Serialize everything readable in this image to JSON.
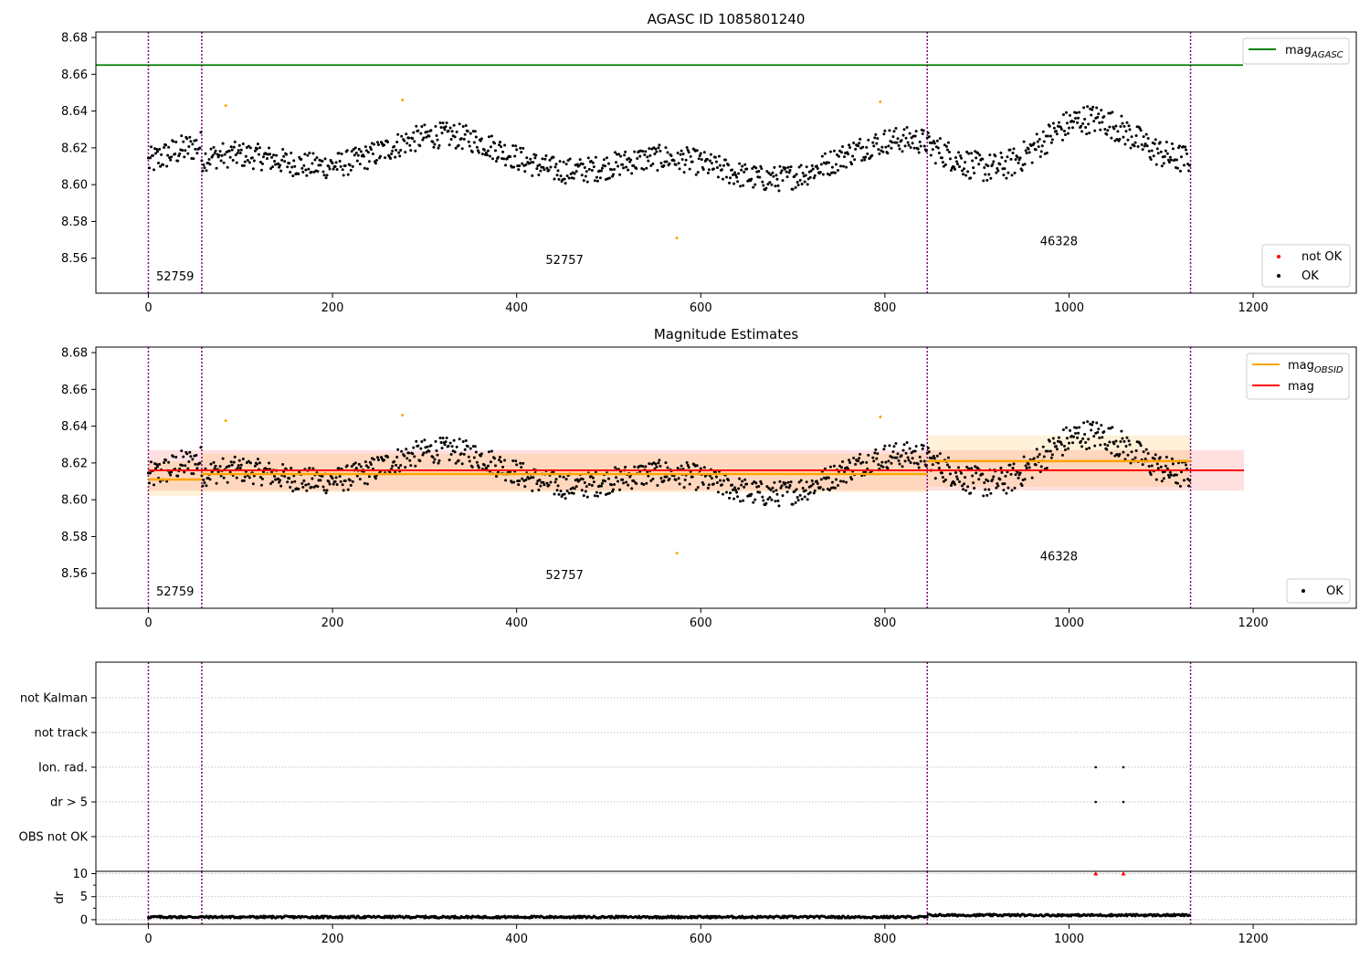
{
  "chart_data": [
    {
      "type": "scatter",
      "title": "AGASC ID 1085801240",
      "xlim": [
        -57,
        1312
      ],
      "ylim": [
        8.541,
        8.683
      ],
      "x_ticks": [
        0,
        200,
        400,
        600,
        800,
        1000,
        1200
      ],
      "y_ticks": [
        8.56,
        8.58,
        8.6,
        8.62,
        8.64,
        8.66,
        8.68
      ],
      "y_tick_labels": [
        "8.56",
        "8.58",
        "8.60",
        "8.62",
        "8.64",
        "8.66",
        "8.68"
      ],
      "grid": false,
      "mag_agasc": 8.665,
      "legend_top": {
        "placement": "top-right",
        "entries": [
          {
            "label": "mag",
            "sub": "AGASC",
            "color": "#008000"
          }
        ]
      },
      "legend_bottom": {
        "placement": "bottom-right",
        "entries": [
          {
            "label": "not OK",
            "color": "#ff0000"
          },
          {
            "label": "OK",
            "color": "#000000"
          }
        ]
      }
    },
    {
      "type": "scatter",
      "title": "Magnitude Estimates",
      "xlim": [
        -57,
        1312
      ],
      "ylim": [
        8.541,
        8.683
      ],
      "x_ticks": [
        0,
        200,
        400,
        600,
        800,
        1000,
        1200
      ],
      "y_ticks": [
        8.56,
        8.58,
        8.6,
        8.62,
        8.64,
        8.66,
        8.68
      ],
      "y_tick_labels": [
        "8.56",
        "8.58",
        "8.60",
        "8.62",
        "8.64",
        "8.66",
        "8.68"
      ],
      "grid": false,
      "mag": 8.616,
      "mag_band": [
        8.605,
        8.627
      ],
      "mag_x_range": [
        0,
        1190
      ],
      "mag_obsid": [
        {
          "x_start": 0,
          "x_end": 58,
          "value": 8.611,
          "band": [
            8.602,
            8.621
          ]
        },
        {
          "x_start": 58,
          "x_end": 846,
          "value": 8.614,
          "band": [
            8.604,
            8.625
          ]
        },
        {
          "x_start": 846,
          "x_end": 1132,
          "value": 8.621,
          "band": [
            8.607,
            8.635
          ]
        }
      ],
      "legend_top": {
        "placement": "top-right",
        "entries": [
          {
            "label": "mag",
            "sub": "OBSID",
            "color": "#ffa500"
          },
          {
            "label": "mag",
            "sub": "",
            "color": "#ff0000"
          }
        ]
      },
      "legend_bottom": {
        "placement": "bottom-right",
        "entries": [
          {
            "label": "OK",
            "color": "#000000"
          }
        ]
      }
    },
    {
      "type": "scatter",
      "title": "",
      "xlim": [
        -57,
        1312
      ],
      "categories": [
        "not Kalman",
        "not track",
        "Ion. rad.",
        "dr > 5",
        "OBS not OK"
      ],
      "flag_points": [
        {
          "category": "Ion. rad.",
          "x": [
            1029,
            1059
          ]
        },
        {
          "category": "dr > 5",
          "x": [
            1029,
            1059
          ]
        }
      ],
      "grid": true
    },
    {
      "type": "scatter",
      "title": "",
      "ylabel": "dr",
      "xlim": [
        -57,
        1312
      ],
      "ylim": [
        -1,
        10.5
      ],
      "x_ticks": [
        0,
        200,
        400,
        600,
        800,
        1000,
        1200
      ],
      "y_ticks": [
        0,
        5,
        10
      ],
      "y_tick_labels": [
        "0",
        "5",
        "10"
      ],
      "clipped_points": [
        {
          "x": 1029,
          "y": 10
        },
        {
          "x": 1059,
          "y": 10
        }
      ],
      "grid": true
    }
  ],
  "observations": [
    {
      "obsid": "52759",
      "x_start": 0,
      "x_end": 58,
      "label_y": 8.548
    },
    {
      "obsid": "52757",
      "x_start": 58,
      "x_end": 846,
      "label_y": 8.557
    },
    {
      "obsid": "46328",
      "x_start": 846,
      "x_end": 1132,
      "label_y": 8.567
    }
  ],
  "boundaries": [
    0,
    58,
    846,
    1132
  ],
  "outliers": [
    {
      "x": 84,
      "y": 8.643
    },
    {
      "x": 276,
      "y": 8.646
    },
    {
      "x": 574,
      "y": 8.571
    },
    {
      "x": 795,
      "y": 8.645
    }
  ],
  "series_segments": [
    {
      "x_start": 0,
      "x_end": 58,
      "base": 8.612,
      "amp": 0.012,
      "noise": 0.008
    },
    {
      "x_start": 58,
      "x_end": 846,
      "base": 8.614,
      "amp": 0.013,
      "noise": 0.007
    },
    {
      "x_start": 846,
      "x_end": 1132,
      "base": 8.621,
      "amp": 0.015,
      "noise": 0.008
    }
  ],
  "colors": {
    "agasc": "#008000",
    "mag": "#ff0000",
    "mag_obsid": "#ffa500",
    "boundary": "#800080",
    "ok": "#000000",
    "not_ok": "#ff0000",
    "outlier": "#ffa500",
    "grid": "#b0b0b0"
  }
}
